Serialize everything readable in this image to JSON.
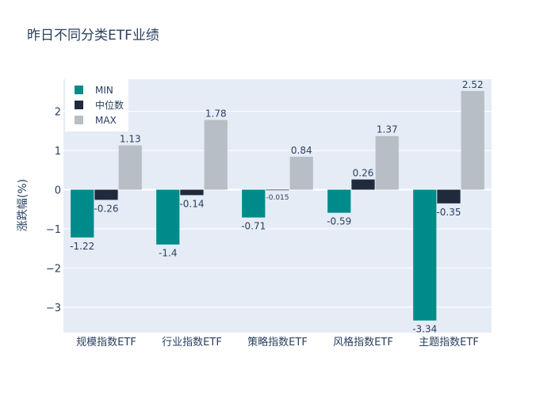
{
  "chart_data": {
    "type": "bar",
    "title": "昨日不同分类ETF业绩",
    "xlabel": "",
    "ylabel": "涨跌幅(%)",
    "ylim": [
      -3.65,
      2.82
    ],
    "yticks": [
      -3,
      -2,
      -1,
      0,
      1,
      2
    ],
    "ytick_labels": [
      "−3",
      "−2",
      "−1",
      "0",
      "1",
      "2"
    ],
    "categories": [
      "规模指数ETF",
      "行业指数ETF",
      "策略指数ETF",
      "风格指数ETF",
      "主题指数ETF"
    ],
    "series": [
      {
        "name": "MIN",
        "color": "#008b8b",
        "values": [
          -1.22,
          -1.4,
          -0.71,
          -0.59,
          -3.34
        ],
        "labels": [
          "-1.22",
          "-1.4",
          "-0.71",
          "-0.59",
          "-3.34"
        ]
      },
      {
        "name": "中位数",
        "color": "#1f2a3c",
        "values": [
          -0.26,
          -0.14,
          -0.015,
          0.26,
          -0.35
        ],
        "labels": [
          "-0.26",
          "-0.14",
          "-0.015",
          "0.26",
          "-0.35"
        ]
      },
      {
        "name": "MAX",
        "color": "#b7bec5",
        "values": [
          1.13,
          1.78,
          0.84,
          1.37,
          2.52
        ],
        "labels": [
          "1.13",
          "1.78",
          "0.84",
          "1.37",
          "2.52"
        ]
      }
    ],
    "legend": {
      "position": "top-left"
    },
    "grid": true
  }
}
